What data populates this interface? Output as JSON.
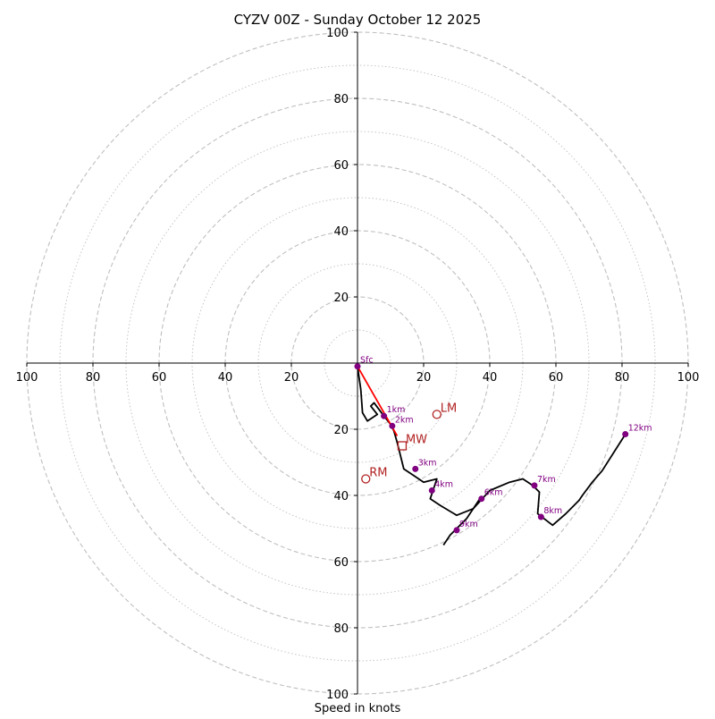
{
  "chart_data": {
    "type": "hodograph",
    "title": "CYZV 00Z - Sunday October 12 2025",
    "xlabel": "Speed in knots",
    "xlim": [
      -100,
      100
    ],
    "ylim": [
      -100,
      100
    ],
    "ring_step_major": 20,
    "ring_step_minor": 10,
    "x_ticks": [
      {
        "value": -100,
        "label": "100"
      },
      {
        "value": -80,
        "label": "80"
      },
      {
        "value": -60,
        "label": "60"
      },
      {
        "value": -40,
        "label": "40"
      },
      {
        "value": -20,
        "label": "20"
      },
      {
        "value": 20,
        "label": "20"
      },
      {
        "value": 40,
        "label": "40"
      },
      {
        "value": 60,
        "label": "60"
      },
      {
        "value": 80,
        "label": "80"
      },
      {
        "value": 100,
        "label": "100"
      }
    ],
    "y_ticks": [
      {
        "value": 100,
        "label": "100"
      },
      {
        "value": 80,
        "label": "80"
      },
      {
        "value": 60,
        "label": "60"
      },
      {
        "value": 40,
        "label": "40"
      },
      {
        "value": 20,
        "label": "20"
      },
      {
        "value": -20,
        "label": "20"
      },
      {
        "value": -40,
        "label": "40"
      },
      {
        "value": -60,
        "label": "60"
      },
      {
        "value": -80,
        "label": "80"
      },
      {
        "value": -100,
        "label": "100"
      }
    ],
    "wind_trace": {
      "name": "Hodograph",
      "u": [
        0,
        1,
        1.5,
        3,
        4.5,
        6,
        4,
        5,
        8,
        10,
        11,
        12,
        14,
        17,
        20,
        24,
        22,
        25,
        30,
        35,
        40,
        46,
        50,
        53,
        55,
        54.5,
        59,
        63,
        67,
        68,
        71,
        74,
        81
      ],
      "v": [
        -1,
        -8,
        -15,
        -17.5,
        -16.5,
        -15.5,
        -13,
        -12,
        -16,
        -18.5,
        -20.5,
        -24,
        -32,
        -34,
        -36,
        -35,
        -41,
        -43,
        -46,
        -44,
        -38.5,
        -36,
        -35,
        -37,
        -39,
        -45.5,
        -49,
        -45.5,
        -41.5,
        -40,
        -36,
        -32.5,
        -21.5
      ]
    },
    "tail_trace": {
      "u": [
        37,
        33,
        30,
        28,
        26
      ],
      "v": [
        -41,
        -47,
        -50,
        -52,
        -55
      ]
    },
    "height_markers": [
      {
        "label": "Sfc",
        "u": 0,
        "v": -1
      },
      {
        "label": "1km",
        "u": 8,
        "v": -16
      },
      {
        "label": "2km",
        "u": 10.5,
        "v": -19
      },
      {
        "label": "3km",
        "u": 17.5,
        "v": -32
      },
      {
        "label": "4km",
        "u": 22.5,
        "v": -38.5
      },
      {
        "label": "6km",
        "u": 37.5,
        "v": -41
      },
      {
        "label": "7km",
        "u": 53.5,
        "v": -37
      },
      {
        "label": "8km",
        "u": 55.5,
        "v": -46.5
      },
      {
        "label": "9km",
        "u": 30,
        "v": -50.5
      },
      {
        "label": "12km",
        "u": 81,
        "v": -21.5
      }
    ],
    "shear_vector": {
      "u0": 0,
      "v0": -1,
      "u1": 12,
      "v1": -22
    },
    "motion_points": [
      {
        "label": "LM",
        "u": 24,
        "v": -15.5,
        "marker": "circle"
      },
      {
        "label": "MW",
        "u": 13.5,
        "v": -25,
        "marker": "square"
      },
      {
        "label": "RM",
        "u": 2.5,
        "v": -35,
        "marker": "circle"
      }
    ],
    "colors": {
      "trace": "#000000",
      "marker": "#800080",
      "motion": "#b22222",
      "shear": "#ff0000",
      "grid": "#bfbfbf",
      "axis": "#000000"
    }
  }
}
